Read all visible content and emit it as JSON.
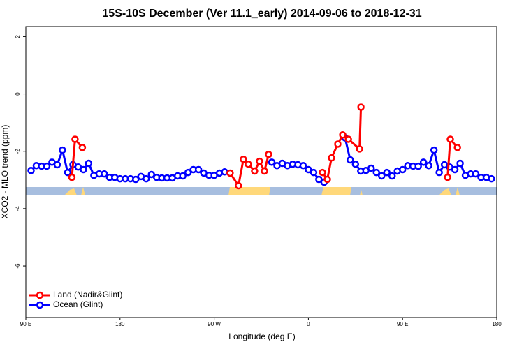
{
  "chart_data": {
    "type": "line",
    "title": "15S-10S December (Ver 11.1_early)   2014-09-06 to 2018-12-31",
    "x_label": "Longitude (deg E)",
    "y_label": "XCO2 - MLO trend (ppm)",
    "xlim": [
      90,
      540
    ],
    "ylim": [
      -7.8,
      2.35
    ],
    "xticks": [
      {
        "value": 90,
        "label": "90 E"
      },
      180,
      {
        "value": 270,
        "label": "90 W"
      },
      {
        "value": 360,
        "label": "0"
      },
      {
        "value": 450,
        "label": "90 E"
      },
      {
        "value": 540,
        "label": "180"
      }
    ],
    "yticks": [
      -6,
      -4,
      -2,
      0,
      2
    ],
    "legend": "bottom-left",
    "series": [
      {
        "name": "Land (Nadir&Glint)",
        "color": "#ff0000",
        "x": [
          134,
          137,
          144,
          285.2,
          293.2,
          297.9,
          302.6,
          308.6,
          313.3,
          318,
          322,
          373.4,
          378.1,
          382.1,
          388.1,
          392.8,
          398.2,
          408.9,
          410.2,
          493,
          495.6,
          502.4
        ],
        "values": [
          -2.91,
          -1.58,
          -1.87,
          -2.76,
          -3.2,
          -2.28,
          -2.45,
          -2.69,
          -2.35,
          -2.69,
          -2.11,
          -2.74,
          -2.98,
          -2.23,
          -1.75,
          -1.43,
          -1.58,
          -1.92,
          -0.46,
          -2.91,
          -1.58,
          -1.87
        ]
      },
      {
        "name": "Ocean (Glint)",
        "color": "#0000ff",
        "x": [
          95,
          100,
          105,
          110,
          115,
          120,
          125,
          130,
          135,
          140,
          145,
          150,
          155,
          160,
          165,
          170,
          175,
          180,
          185,
          190,
          195,
          200,
          205,
          210,
          215,
          220,
          225,
          230,
          235,
          240,
          245,
          250,
          255,
          260,
          265,
          270,
          275,
          280,
          285,
          290,
          295,
          300,
          305,
          310,
          315,
          320,
          325,
          330,
          335,
          340,
          345,
          350,
          355,
          360,
          365,
          370,
          375,
          380,
          385,
          390,
          395,
          400,
          405,
          410,
          415,
          420,
          425,
          430,
          435,
          440,
          445,
          450,
          455,
          460,
          465,
          470,
          475,
          480,
          485,
          490,
          495,
          500,
          505,
          510,
          515,
          520,
          525,
          530,
          535
        ],
        "values": [
          -2.67,
          -2.5,
          -2.52,
          -2.52,
          -2.38,
          -2.47,
          -1.96,
          -2.74,
          -2.47,
          -2.55,
          -2.64,
          -2.42,
          -2.84,
          -2.79,
          -2.79,
          -2.91,
          -2.91,
          -2.96,
          -2.96,
          -2.96,
          -2.98,
          -2.88,
          -2.96,
          -2.81,
          -2.91,
          -2.93,
          -2.93,
          -2.93,
          -2.86,
          -2.86,
          -2.74,
          -2.64,
          -2.64,
          -2.76,
          -2.84,
          -2.84,
          -2.76,
          -2.72,
          null,
          null,
          null,
          null,
          null,
          null,
          null,
          null,
          -2.38,
          -2.5,
          -2.42,
          -2.5,
          -2.45,
          -2.47,
          -2.5,
          -2.64,
          -2.74,
          -2.98,
          -3.08,
          null,
          null,
          null,
          -1.53,
          -2.3,
          -2.45,
          -2.69,
          -2.67,
          -2.59,
          -2.74,
          -2.86,
          -2.74,
          -2.86,
          -2.69,
          -2.64,
          -2.5,
          -2.52,
          -2.52,
          -2.38,
          -2.5,
          -1.96,
          -2.74,
          -2.47,
          -2.55,
          -2.64,
          -2.42,
          -2.84,
          -2.79,
          -2.79,
          -2.91,
          -2.91,
          -2.96
        ]
      }
    ]
  }
}
